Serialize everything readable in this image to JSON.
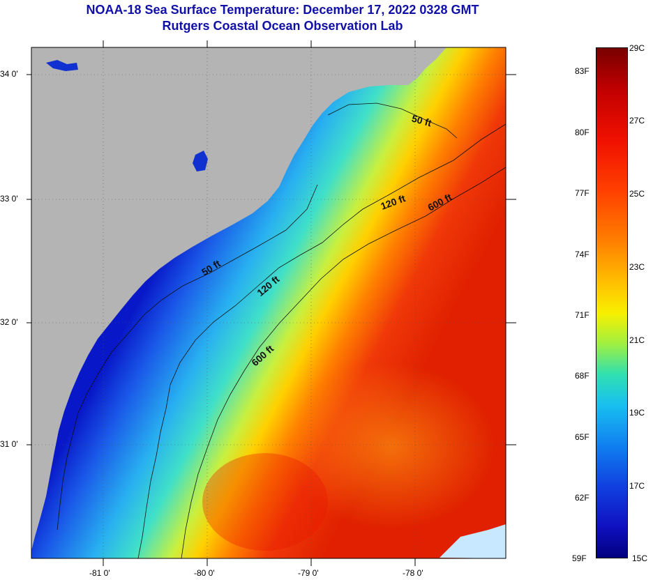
{
  "header": {
    "title": "NOAA-18 Sea Surface Temperature:  December 17, 2022 0328 GMT",
    "subtitle": "Rutgers Coastal Ocean Observation Lab"
  },
  "axes": {
    "lat_labels": [
      "34 0'",
      "33 0'",
      "32 0'",
      "31 0'"
    ],
    "lon_labels": [
      "-81 0'",
      "-80 0'",
      "-79 0'",
      "-78 0'"
    ]
  },
  "contours": {
    "labels": [
      "50 ft",
      "120 ft",
      "600 ft",
      "50 ft",
      "120 ft",
      "600 ft"
    ]
  },
  "colorbar": {
    "fahrenheit": [
      "83F",
      "80F",
      "77F",
      "74F",
      "71F",
      "68F",
      "65F",
      "62F",
      "59F"
    ],
    "celsius": [
      "29C",
      "27C",
      "25C",
      "23C",
      "21C",
      "19C",
      "17C",
      "15C"
    ]
  },
  "colors": {
    "land": "#b4b4b4",
    "title": "#1010a8",
    "warm": "#e82000",
    "cold": "#0a10c0"
  }
}
